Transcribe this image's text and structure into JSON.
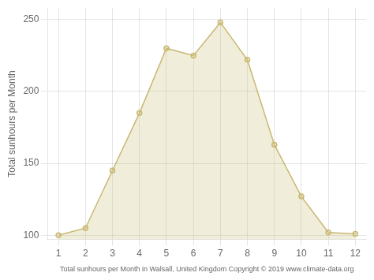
{
  "chart_data": {
    "type": "area",
    "x": [
      1,
      2,
      3,
      4,
      5,
      6,
      7,
      8,
      9,
      10,
      11,
      12
    ],
    "values": [
      100,
      105,
      145,
      185,
      230,
      225,
      248,
      222,
      163,
      127,
      102,
      101
    ],
    "color": "#C8B870",
    "marker": "circle",
    "xlabel": "Total sunhours per Month in Walsall, United Kingdom Copyright © 2019 www.climate-data.org",
    "ylabel": "Total sunhours per Month",
    "xlim": [
      0.6,
      12.4
    ],
    "xticks": [
      1,
      2,
      3,
      4,
      5,
      6,
      7,
      8,
      9,
      10,
      11,
      12
    ],
    "ylim": [
      97,
      258
    ],
    "yticks": [
      100,
      150,
      200,
      250
    ],
    "grid": true
  }
}
